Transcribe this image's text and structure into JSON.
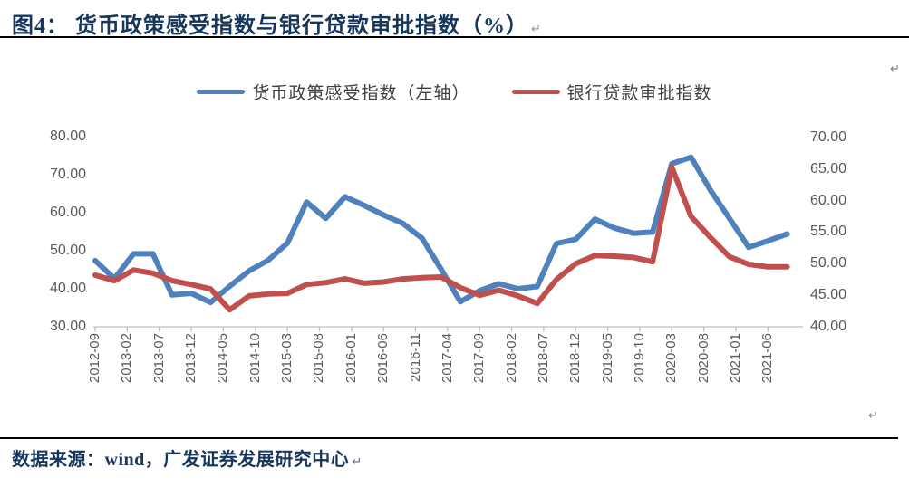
{
  "header": {
    "title": "图4：  货币政策感受指数与银行贷款审批指数（%）",
    "return_mark": "↵"
  },
  "footer": {
    "source": "数据来源：wind，广发证券发展研究中心",
    "return_mark": "↵"
  },
  "marks": {
    "top_right": "↵",
    "bottom_right": "↵"
  },
  "colors": {
    "series_blue": "#4F81BD",
    "series_red": "#C0504D",
    "title_navy": "#17365D",
    "axis_text": "#595959",
    "axis_line": "#BFBFBF",
    "rule_black": "#000000"
  },
  "chart_data": {
    "type": "line",
    "title": "货币政策感受指数与银行贷款审批指数（%）",
    "grid": false,
    "legend_position": "top",
    "x_tick_labels": [
      "2012-09",
      "2013-02",
      "2013-07",
      "2013-12",
      "2014-05",
      "2014-10",
      "2015-03",
      "2015-08",
      "2016-01",
      "2016-06",
      "2016-11",
      "2017-04",
      "2017-09",
      "2018-02",
      "2018-07",
      "2018-12",
      "2019-05",
      "2019-10",
      "2020-03",
      "2020-08",
      "2021-01",
      "2021-06"
    ],
    "x": [
      "2012-09",
      "2012-12",
      "2013-03",
      "2013-06",
      "2013-09",
      "2013-12",
      "2014-03",
      "2014-06",
      "2014-09",
      "2014-12",
      "2015-03",
      "2015-06",
      "2015-09",
      "2015-12",
      "2016-03",
      "2016-06",
      "2016-09",
      "2016-12",
      "2017-03",
      "2017-06",
      "2017-09",
      "2017-12",
      "2018-03",
      "2018-06",
      "2018-09",
      "2018-12",
      "2019-03",
      "2019-06",
      "2019-09",
      "2019-12",
      "2020-03",
      "2020-06",
      "2020-09",
      "2020-12",
      "2021-03",
      "2021-06",
      "2021-09"
    ],
    "series": [
      {
        "name": "货币政策感受指数（左轴）",
        "axis": "left",
        "color": "#4F81BD",
        "values": [
          47.4,
          42.7,
          49.2,
          49.2,
          38.4,
          38.8,
          36.4,
          40.7,
          44.7,
          47.5,
          52.0,
          62.8,
          58.5,
          64.2,
          61.9,
          59.4,
          57.2,
          53.3,
          45.1,
          36.6,
          39.5,
          41.3,
          40.0,
          40.6,
          51.9,
          53.0,
          58.3,
          56.0,
          54.6,
          54.9,
          72.9,
          74.6,
          66.0,
          58.5,
          50.9,
          52.6,
          54.4
        ]
      },
      {
        "name": "银行贷款审批指数",
        "axis": "right",
        "color": "#C0504D",
        "values": [
          48.2,
          47.3,
          49.0,
          48.5,
          47.3,
          46.7,
          46.0,
          42.7,
          44.9,
          45.2,
          45.3,
          46.7,
          47.0,
          47.6,
          46.9,
          47.1,
          47.6,
          47.8,
          47.9,
          46.2,
          45.0,
          45.8,
          44.9,
          43.7,
          47.5,
          50.0,
          51.3,
          51.2,
          51.0,
          50.3,
          65.3,
          57.5,
          54.2,
          51.1,
          49.9,
          49.5,
          49.5
        ]
      }
    ],
    "left_axis": {
      "min": 30,
      "max": 80,
      "tick_step": 10,
      "tick_labels": [
        "30.00",
        "40.00",
        "50.00",
        "60.00",
        "70.00",
        "80.00"
      ]
    },
    "right_axis": {
      "min": 40,
      "max": 70,
      "tick_step": 5,
      "tick_labels": [
        "40.00",
        "45.00",
        "50.00",
        "55.00",
        "60.00",
        "65.00",
        "70.00"
      ]
    }
  }
}
